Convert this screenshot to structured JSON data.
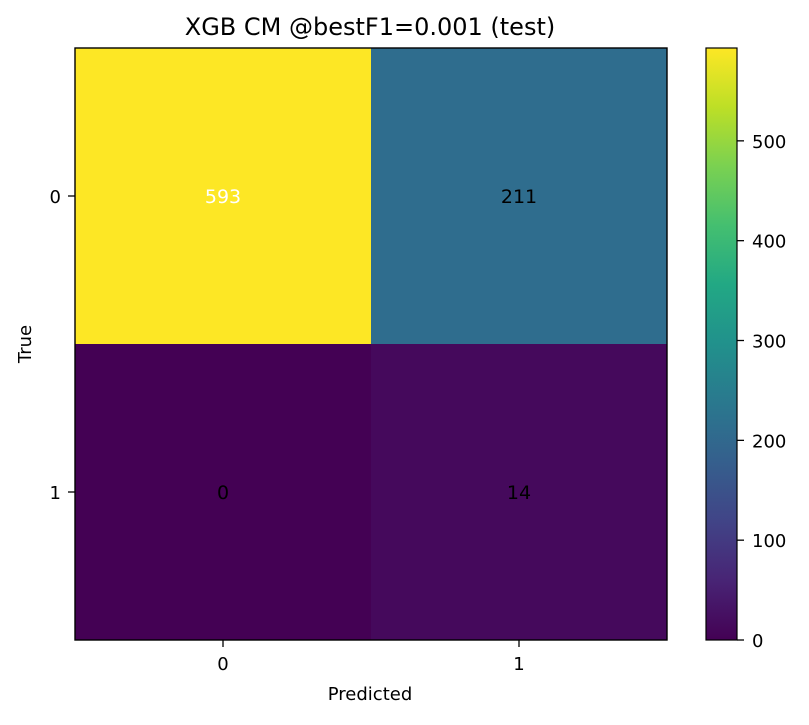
{
  "chart_data": {
    "type": "heatmap",
    "title": "XGB CM @bestF1=0.001 (test)",
    "xlabel": "Predicted",
    "ylabel": "True",
    "x_categories": [
      "0",
      "1"
    ],
    "y_categories": [
      "0",
      "1"
    ],
    "values": [
      [
        593,
        211
      ],
      [
        0,
        14
      ]
    ],
    "cell_labels": [
      [
        "593",
        "211"
      ],
      [
        "0",
        "14"
      ]
    ],
    "colormap": "viridis",
    "color_range": [
      0,
      593
    ],
    "colorbar": {
      "ticks": [
        0,
        100,
        200,
        300,
        400,
        500
      ],
      "tick_labels": [
        "0",
        "100",
        "200",
        "300",
        "400",
        "500"
      ]
    },
    "grid": false,
    "legend": "none",
    "colors": {
      "text_on_dark": "#ffffff",
      "text_on_light": "#000000",
      "axis": "#000000"
    }
  }
}
